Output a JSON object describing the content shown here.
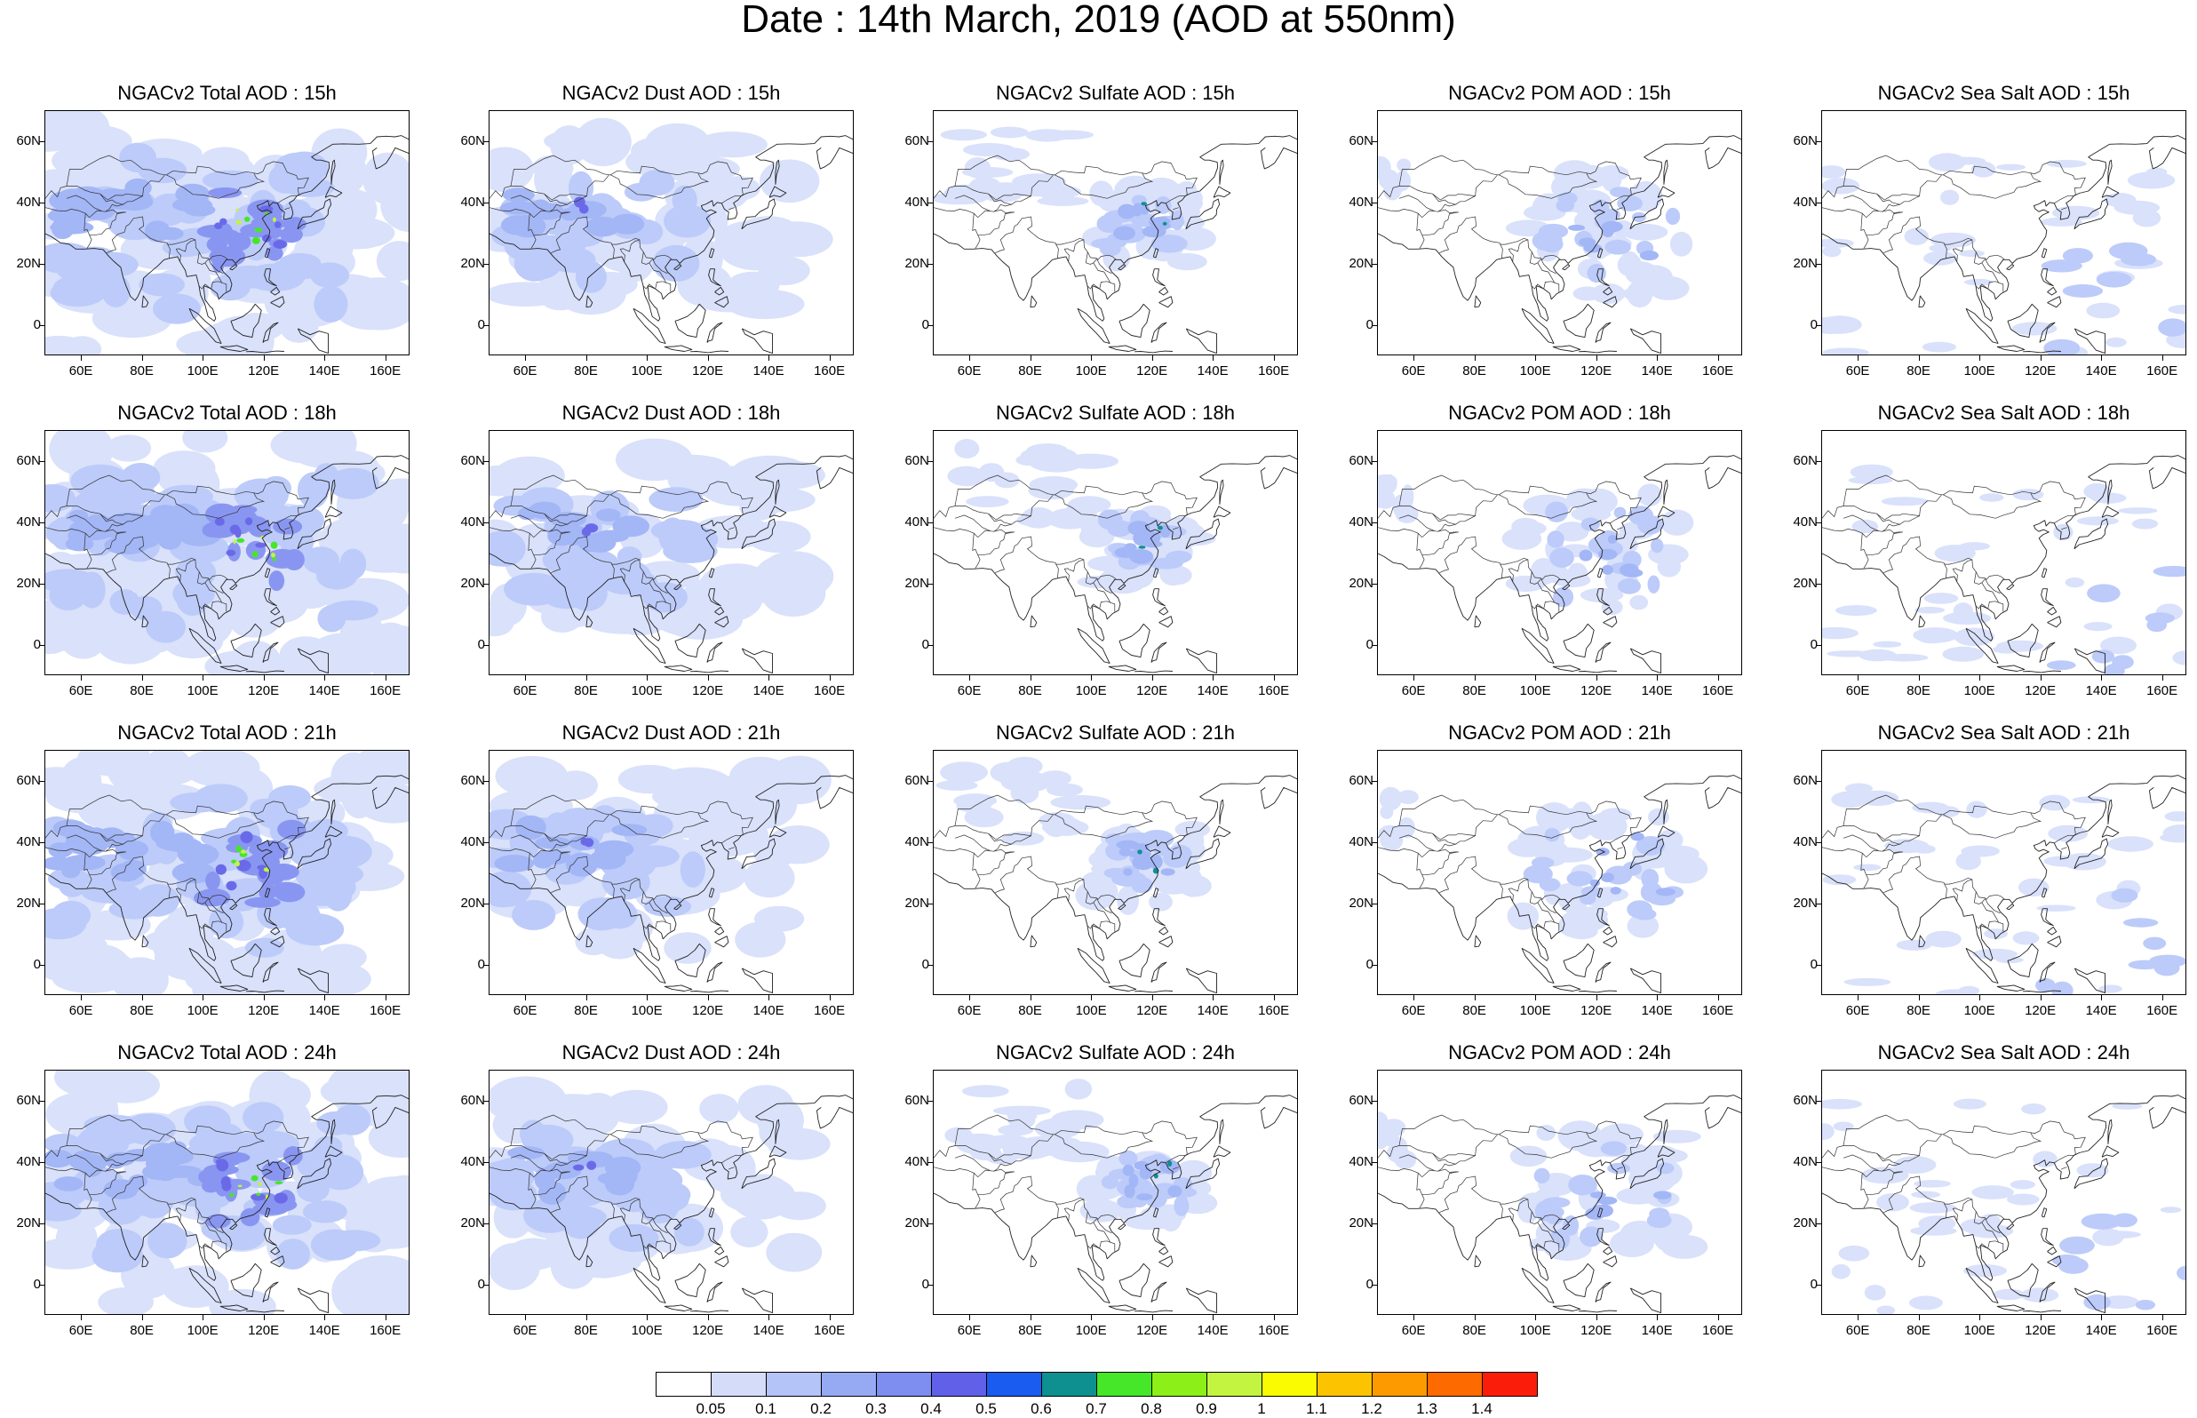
{
  "title": "Date : 14th March, 2019 (AOD at 550nm)",
  "map_axes": {
    "lon_range": [
      48,
      168
    ],
    "lat_range": [
      -10,
      70
    ],
    "x_ticks": [
      "60E",
      "80E",
      "100E",
      "120E",
      "140E",
      "160E"
    ],
    "x_tick_values": [
      60,
      80,
      100,
      120,
      140,
      160
    ],
    "y_ticks": [
      "60N",
      "40N",
      "20N",
      "0"
    ],
    "y_tick_values": [
      60,
      40,
      20,
      0
    ]
  },
  "panels": [
    [
      "NGACv2 Total AOD : 15h",
      "NGACv2 Dust AOD : 15h",
      "NGACv2 Sulfate AOD : 15h",
      "NGACv2 POM AOD : 15h",
      "NGACv2 Sea Salt AOD : 15h"
    ],
    [
      "NGACv2 Total AOD : 18h",
      "NGACv2 Dust AOD : 18h",
      "NGACv2 Sulfate AOD : 18h",
      "NGACv2 POM AOD : 18h",
      "NGACv2 Sea Salt AOD : 18h"
    ],
    [
      "NGACv2 Total AOD : 21h",
      "NGACv2 Dust AOD : 21h",
      "NGACv2 Sulfate AOD : 21h",
      "NGACv2 POM AOD : 21h",
      "NGACv2 Sea Salt AOD : 21h"
    ],
    [
      "NGACv2 Total AOD : 24h",
      "NGACv2 Dust AOD : 24h",
      "NGACv2 Sulfate AOD : 24h",
      "NGACv2 POM AOD : 24h",
      "NGACv2 Sea Salt  AOD : 24h"
    ]
  ],
  "colorbar": {
    "labels": [
      "0.05",
      "0.1",
      "0.2",
      "0.3",
      "0.4",
      "0.5",
      "0.6",
      "0.7",
      "0.8",
      "0.9",
      "1",
      "1.1",
      "1.2",
      "1.3",
      "1.4"
    ],
    "colors": [
      "#ffffff",
      "#d4dcfa",
      "#b4c4f8",
      "#96aaf4",
      "#7d8df0",
      "#6060e8",
      "#1a5cf0",
      "#0e9090",
      "#46e628",
      "#8cf018",
      "#c2f440",
      "#fafa00",
      "#fcc400",
      "#fc9a00",
      "#fc6a00",
      "#fa1e0a"
    ]
  }
}
